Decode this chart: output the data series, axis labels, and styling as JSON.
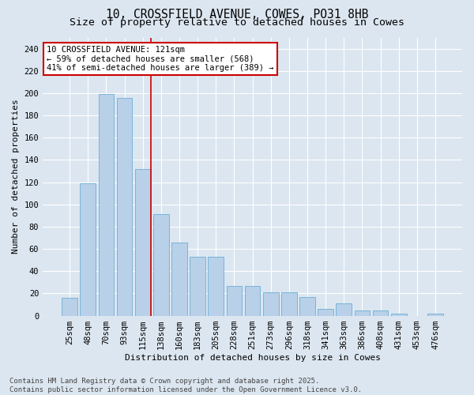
{
  "title": "10, CROSSFIELD AVENUE, COWES, PO31 8HB",
  "subtitle": "Size of property relative to detached houses in Cowes",
  "xlabel": "Distribution of detached houses by size in Cowes",
  "ylabel": "Number of detached properties",
  "categories": [
    "25sqm",
    "48sqm",
    "70sqm",
    "93sqm",
    "115sqm",
    "138sqm",
    "160sqm",
    "183sqm",
    "205sqm",
    "228sqm",
    "251sqm",
    "273sqm",
    "296sqm",
    "318sqm",
    "341sqm",
    "363sqm",
    "386sqm",
    "408sqm",
    "431sqm",
    "453sqm",
    "476sqm"
  ],
  "values": [
    16,
    119,
    199,
    196,
    132,
    91,
    66,
    53,
    53,
    27,
    27,
    21,
    21,
    17,
    6,
    11,
    5,
    5,
    2,
    0,
    2
  ],
  "bar_color": "#b8d0e8",
  "bar_edge_color": "#6aaed6",
  "background_color": "#dce6f0",
  "vline_x_index": 4,
  "vline_color": "#cc0000",
  "annotation_text": "10 CROSSFIELD AVENUE: 121sqm\n← 59% of detached houses are smaller (568)\n41% of semi-detached houses are larger (389) →",
  "annotation_box_facecolor": "white",
  "annotation_box_edgecolor": "#cc0000",
  "footer": "Contains HM Land Registry data © Crown copyright and database right 2025.\nContains public sector information licensed under the Open Government Licence v3.0.",
  "ylim": [
    0,
    250
  ],
  "yticks": [
    0,
    20,
    40,
    60,
    80,
    100,
    120,
    140,
    160,
    180,
    200,
    220,
    240
  ],
  "grid_color": "#ffffff",
  "title_fontsize": 10.5,
  "subtitle_fontsize": 9.5,
  "ylabel_fontsize": 8,
  "xlabel_fontsize": 8,
  "tick_fontsize": 7.5,
  "annotation_fontsize": 7.5,
  "footer_fontsize": 6.5
}
